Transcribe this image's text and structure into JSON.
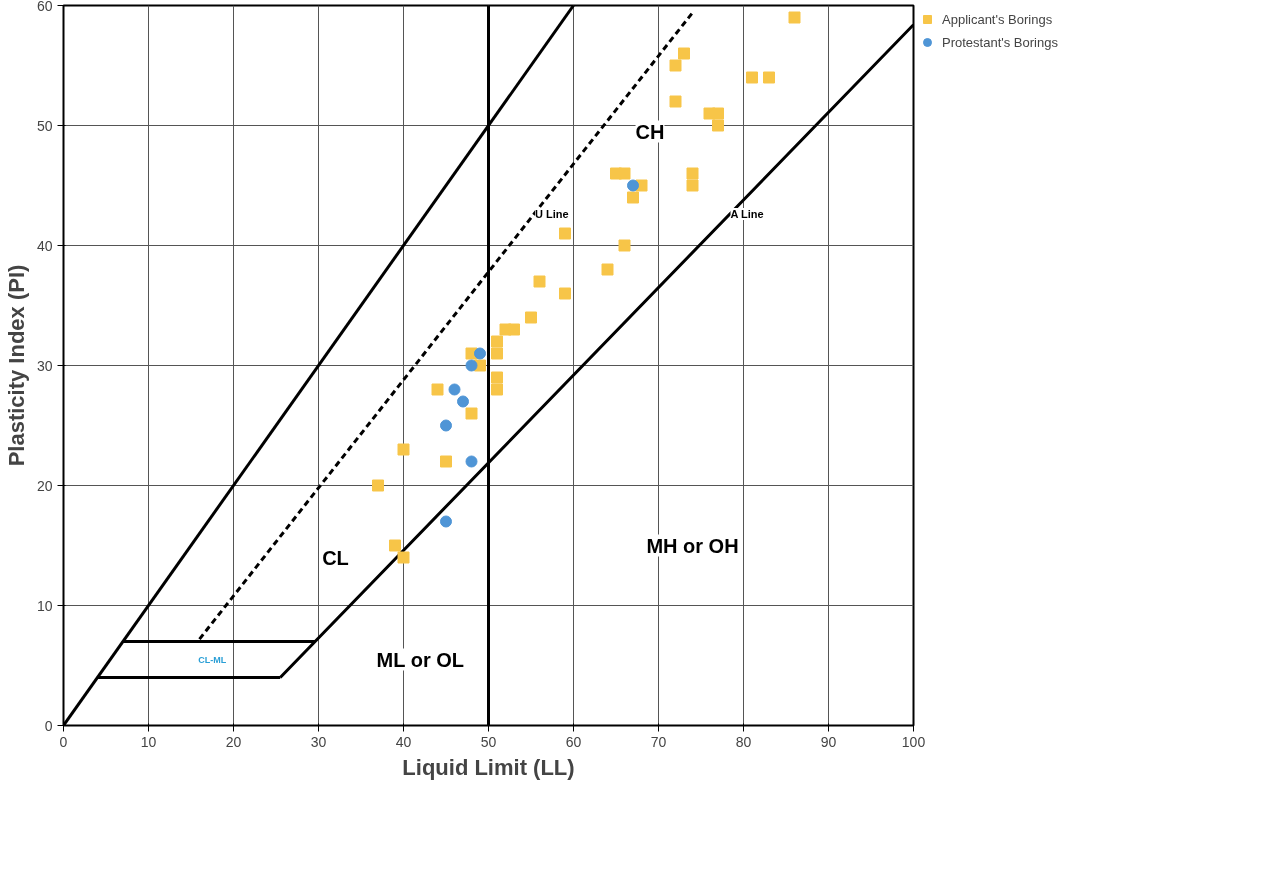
{
  "chart_data": {
    "type": "scatter",
    "xlabel": "Liquid Limit (LL)",
    "ylabel": "Plasticity Index (PI)",
    "xlim": [
      0,
      100
    ],
    "ylim": [
      0,
      60
    ],
    "xticks": [
      0,
      10,
      20,
      30,
      40,
      50,
      60,
      70,
      80,
      90,
      100
    ],
    "yticks": [
      0,
      10,
      20,
      30,
      40,
      50,
      60
    ],
    "grid": true,
    "legend": "right",
    "series": [
      {
        "type": "line",
        "color": "#000000",
        "line_style": "solid",
        "x": [
          0,
          60
        ],
        "values": [
          0,
          60
        ]
      },
      {
        "type": "line",
        "color": "#000000",
        "line_style": "dashed",
        "x": [
          16,
          74
        ],
        "values": [
          7.2,
          59.4
        ]
      },
      {
        "type": "line",
        "color": "#000000",
        "line_style": "solid",
        "x": [
          25.5,
          29.6,
          100
        ],
        "values": [
          4,
          7,
          58.4
        ]
      },
      {
        "type": "line",
        "color": "#000000",
        "line_style": "solid",
        "x": [
          7,
          29.6
        ],
        "values": [
          7,
          7
        ]
      },
      {
        "type": "line",
        "color": "#000000",
        "line_style": "solid",
        "x": [
          4,
          25.5
        ],
        "values": [
          4,
          4
        ]
      },
      {
        "type": "line",
        "color": "#000000",
        "line_style": "solid",
        "x": [
          50,
          50
        ],
        "values": [
          0,
          60
        ]
      },
      {
        "name": "Applicant's Borings",
        "color": "#f7c548",
        "marker": "square",
        "x": [
          37,
          39,
          40,
          40,
          44,
          45,
          48,
          48,
          49,
          51,
          51,
          51,
          51,
          52,
          53,
          55,
          56,
          59,
          59,
          64,
          65,
          66,
          66,
          67,
          68,
          72,
          72,
          73,
          74,
          74,
          76,
          77,
          77,
          81,
          83,
          86
        ],
        "values": [
          20,
          15,
          14,
          23,
          28,
          22,
          26,
          31,
          30,
          32,
          31,
          29,
          28,
          33,
          33,
          34,
          37,
          41,
          36,
          38,
          46,
          46,
          40,
          44,
          45,
          52,
          55,
          56,
          46,
          45,
          51,
          51,
          50,
          54,
          54,
          59
        ]
      },
      {
        "name": "Protestant's Borings",
        "color": "#4f95d6",
        "marker": "circle",
        "x": [
          49,
          48,
          46,
          47,
          45,
          48,
          45,
          67
        ],
        "values": [
          31,
          30,
          28,
          27,
          25,
          22,
          17,
          45
        ]
      }
    ],
    "annotations": [
      {
        "text": "U Line",
        "x": 55,
        "y": 42.3
      },
      {
        "text": "A Line",
        "x": 78,
        "y": 42.3
      },
      "CH",
      "CL",
      "MH or OH",
      "ML or OL",
      "CL-ML"
    ]
  }
}
